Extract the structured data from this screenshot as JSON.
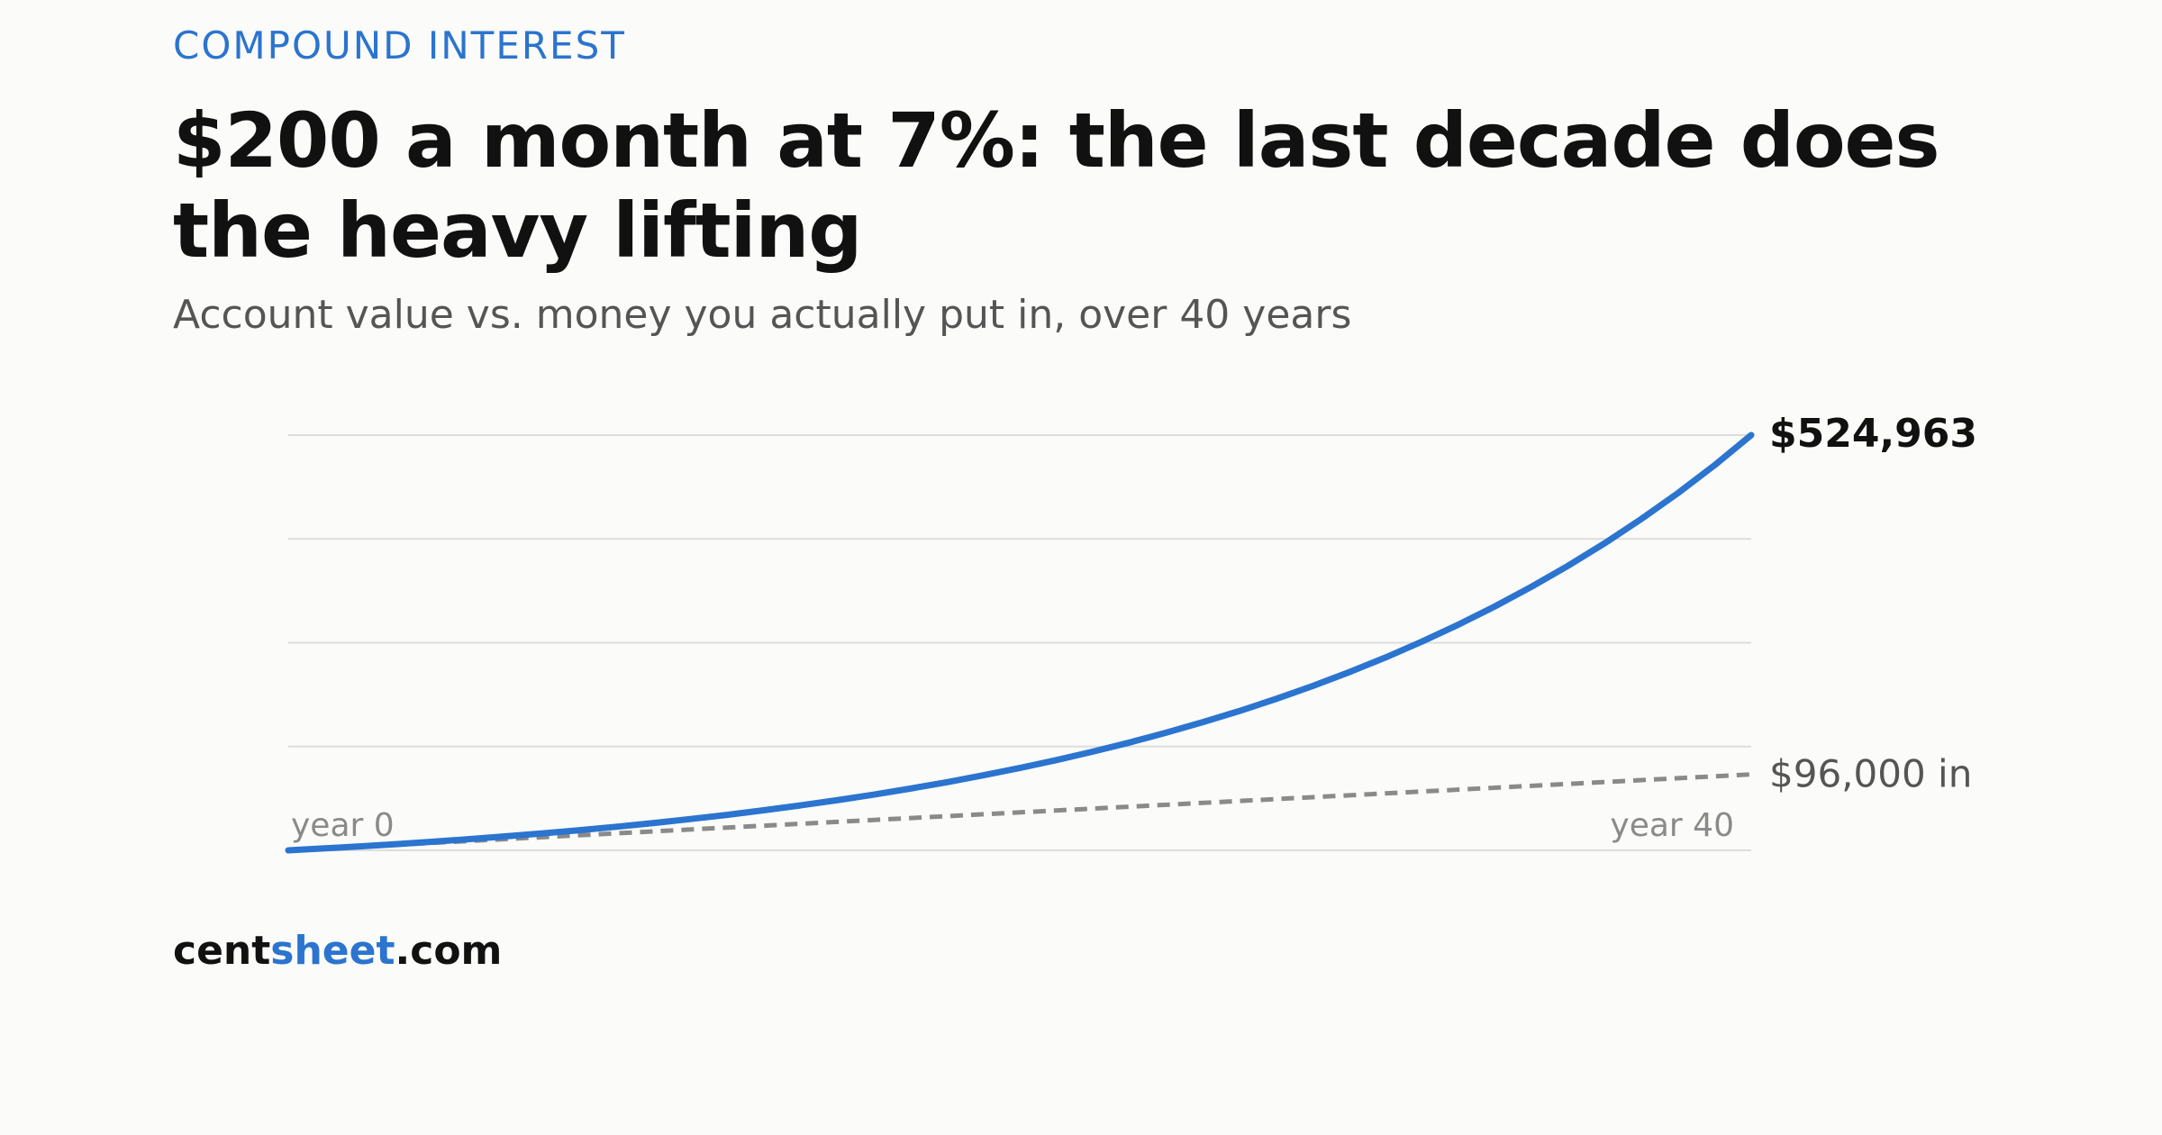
{
  "header": {
    "kicker": "COMPOUND INTEREST",
    "title": "$200 a month at 7%: the last decade does the heavy lifting",
    "subtitle": "Account value vs. money you actually put in, over 40 years"
  },
  "brand": {
    "part1": "cent",
    "part2": "sheet",
    "part3": ".com"
  },
  "colors": {
    "accent": "#2b74cf",
    "contributions": "#8a8a8a",
    "grid": "#dddddd",
    "text_dark": "#111111",
    "text_muted": "#555555",
    "tick_text": "#8a8a8a"
  },
  "chart_data": {
    "type": "line",
    "title": "$200 a month at 7%: the last decade does the heavy lifting",
    "subtitle": "Account value vs. money you actually put in, over 40 years",
    "xlabel": "",
    "ylabel": "",
    "xlim": [
      0,
      40
    ],
    "ylim": [
      0,
      525000
    ],
    "grid": "horizontal",
    "x_tick_labels": {
      "start": "year 0",
      "end": "year 40"
    },
    "series": [
      {
        "key": "account",
        "style": "solid",
        "end_label": "$524,963",
        "x": [
          0,
          1,
          2,
          3,
          4,
          5,
          6,
          7,
          8,
          9,
          10,
          11,
          12,
          13,
          14,
          15,
          16,
          17,
          18,
          19,
          20,
          21,
          22,
          23,
          24,
          25,
          26,
          27,
          28,
          29,
          30,
          31,
          32,
          33,
          34,
          35,
          36,
          37,
          38,
          39,
          40
        ],
        "values": [
          0,
          2478,
          5135,
          7984,
          11039,
          14315,
          17827,
          21593,
          25631,
          29961,
          34604,
          39583,
          44922,
          50646,
          56785,
          63367,
          70425,
          77992,
          86107,
          94808,
          104138,
          114143,
          124871,
          136374,
          148708,
          161934,
          176115,
          191322,
          207628,
          225112,
          243861,
          263964,
          285521,
          308636,
          333421,
          359998,
          388496,
          419054,
          451821,
          486956,
          524963
        ]
      },
      {
        "key": "contributions",
        "style": "dashed",
        "end_label": "$96,000 in",
        "x": [
          0,
          40
        ],
        "values": [
          0,
          96000
        ]
      }
    ]
  }
}
